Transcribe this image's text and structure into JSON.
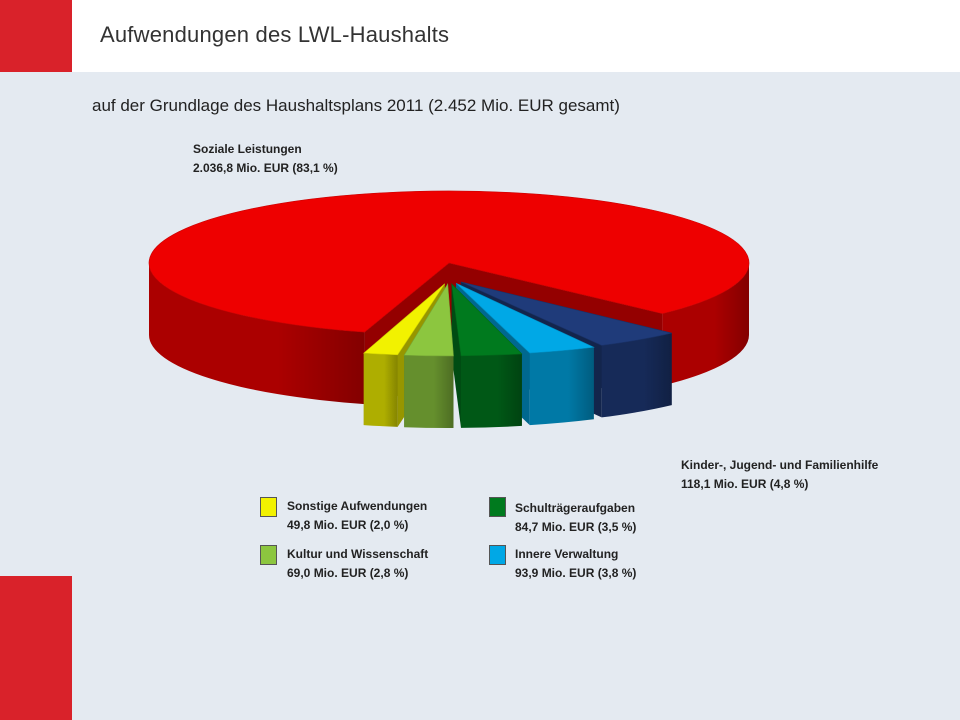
{
  "slide": {
    "title": "Aufwendungen des LWL-Haushalts",
    "subtitle": "auf der Grundlage des Haushaltsplans 2011 (2.452 Mio. EUR gesamt)"
  },
  "colors": {
    "accent": "#d9222a",
    "background": "#e4eaf1"
  },
  "chart_data": {
    "type": "pie",
    "style": "3d exploded",
    "total": 2452,
    "total_unit": "Mio. EUR",
    "slices": [
      {
        "name": "Soziale Leistungen",
        "value": 2036.8,
        "percent": 83.1,
        "value_label": "2.036,8 Mio. EUR (83,1 %)",
        "color": "#ee0000"
      },
      {
        "name": "Kinder-, Jugend- und Familienhilfe",
        "value": 118.1,
        "percent": 4.8,
        "value_label": "118,1 Mio. EUR (4,8 %)",
        "color": "#1f3b7a"
      },
      {
        "name": "Innere Verwaltung",
        "value": 93.9,
        "percent": 3.8,
        "value_label": "93,9 Mio. EUR (3,8 %)",
        "color": "#00a8e6"
      },
      {
        "name": "Schulträgeraufgaben",
        "value": 84.7,
        "percent": 3.5,
        "value_label": "84,7 Mio. EUR (3,5 %)",
        "color": "#007a1e"
      },
      {
        "name": "Kultur und Wissenschaft",
        "value": 69.0,
        "percent": 2.8,
        "value_label": "69,0 Mio. EUR (2,8 %)",
        "color": "#8cc63f"
      },
      {
        "name": "Sonstige Aufwendungen",
        "value": 49.8,
        "percent": 2.0,
        "value_label": "49,8 Mio. EUR (2,0 %)",
        "color": "#f2f200"
      }
    ]
  }
}
